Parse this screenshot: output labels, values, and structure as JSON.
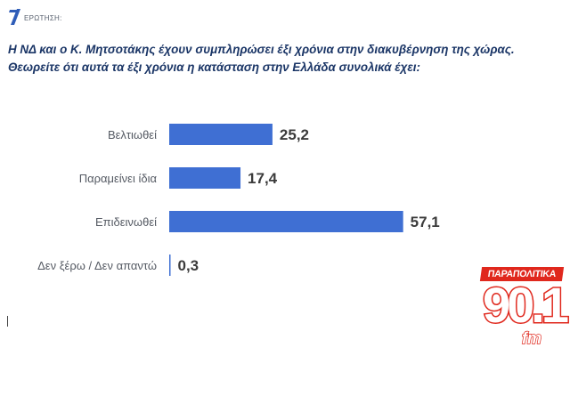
{
  "header": {
    "tag_label": "ΕΡΩΤΗΣΗ:",
    "question_line1": "Η ΝΔ και ο Κ. Μητσοτάκης  έχουν συμπληρώσει έξι χρόνια στην διακυβέρνηση της χώρας.",
    "question_line2": "Θεωρείτε ότι αυτά τα έξι χρόνια η κατάσταση στην Ελλάδα συνολικά έχει:"
  },
  "logo": {
    "top": "ΠΑΡΑΠΟΛΙΤΙΚΑ",
    "number": "90.1",
    "suffix": "fm"
  },
  "chart_data": {
    "type": "bar",
    "orientation": "horizontal",
    "categories": [
      "Βελτιωθεί",
      "Παραμείνει ίδια",
      "Επιδεινωθεί",
      "Δεν ξέρω / Δεν απαντώ"
    ],
    "values": [
      25.2,
      17.4,
      57.1,
      0.3
    ],
    "value_labels": [
      "25,2",
      "17,4",
      "57,1",
      "0,3"
    ],
    "bar_color": "#3f6fd3",
    "xlim": [
      0,
      60
    ],
    "grid": false,
    "legend": "none"
  }
}
